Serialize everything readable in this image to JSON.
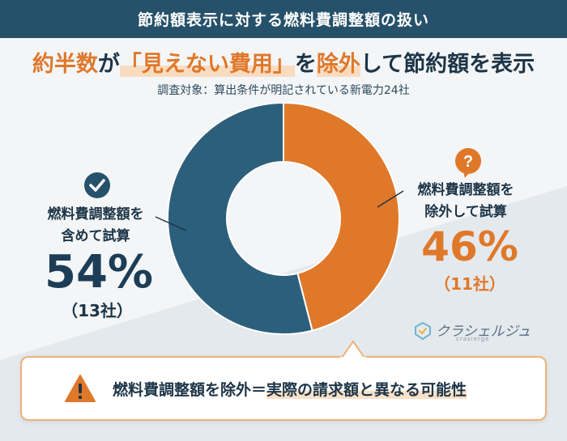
{
  "header": {
    "title": "節約額表示に対する燃料費調整額の扱い"
  },
  "headline": {
    "part1": "約半数",
    "part2": "が",
    "part3": "「見えない費用」",
    "part4": "を",
    "part5": "除外",
    "part6": "して節約額を表示"
  },
  "subtitle": "調査対象：算出条件が明記されている新電力24社",
  "chart_data": {
    "type": "pie",
    "donut": true,
    "title": "",
    "labels": [
      "燃料費調整額を除外して試算",
      "燃料費調整額を含めて試算"
    ],
    "values": [
      46,
      54
    ],
    "counts": [
      11,
      13
    ],
    "colors": [
      "#e0782a",
      "#2c5f7c"
    ],
    "value_labels": [
      "46%",
      "54%"
    ],
    "count_labels": [
      "（11社）",
      "（13社）"
    ]
  },
  "labels": {
    "left_line1": "燃料費調整額を",
    "left_line2": "含めて試算",
    "right_line1": "燃料費調整額を",
    "right_line2": "除外して試算"
  },
  "logo": {
    "name": "クラシェルジュ",
    "sub": "crasierge"
  },
  "callout": {
    "part1": "燃料費調整額を除外＝",
    "part2": "実際の請求額と異なる可能性"
  },
  "colors": {
    "navy": "#26516a",
    "orange": "#e0782a",
    "accent_bg": "#f9dcc0"
  }
}
